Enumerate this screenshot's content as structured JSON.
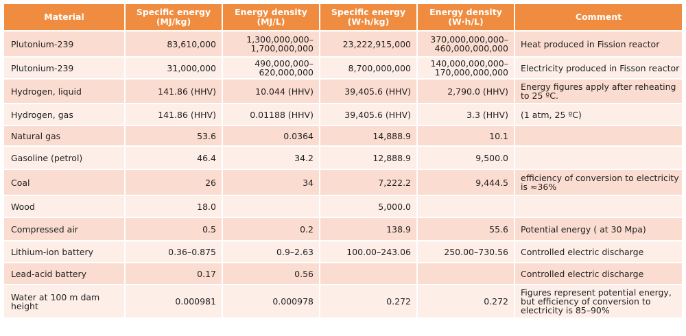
{
  "table": {
    "headers": [
      [
        "Material"
      ],
      [
        "Specific energy",
        "(MJ/kg)"
      ],
      [
        "Energy density",
        "(MJ/L)"
      ],
      [
        "Specific energy",
        "(W·h/kg)"
      ],
      [
        "Energy density",
        "(W·h/L)"
      ],
      [
        "Comment"
      ]
    ],
    "rows": [
      {
        "material": [
          "Plutonium-239"
        ],
        "se_mj": [
          "83,610,000"
        ],
        "ed_mj": [
          "1,300,000,000–",
          "1,700,000,000"
        ],
        "se_wh": [
          "23,222,915,000"
        ],
        "ed_wh": [
          "370,000,000,000–",
          "460,000,000,000"
        ],
        "comment": [
          "Heat produced in Fission reactor"
        ]
      },
      {
        "material": [
          "Plutonium-239"
        ],
        "se_mj": [
          "31,000,000"
        ],
        "ed_mj": [
          "490,000,000–",
          "620,000,000"
        ],
        "se_wh": [
          "8,700,000,000"
        ],
        "ed_wh": [
          "140,000,000,000–",
          "170,000,000,000"
        ],
        "comment": [
          "Electricity produced in Fisson reactor"
        ]
      },
      {
        "material": [
          "Hydrogen, liquid"
        ],
        "se_mj": [
          "141.86 (HHV)"
        ],
        "ed_mj": [
          "10.044 (HHV)"
        ],
        "se_wh": [
          "39,405.6 (HHV)"
        ],
        "ed_wh": [
          "2,790.0 (HHV)"
        ],
        "comment": [
          "Energy figures apply after reheating",
          "to 25 ºC."
        ]
      },
      {
        "material": [
          "Hydrogen, gas"
        ],
        "se_mj": [
          "141.86 (HHV)"
        ],
        "ed_mj": [
          "0.01188 (HHV)"
        ],
        "se_wh": [
          "39,405.6 (HHV)"
        ],
        "ed_wh": [
          "3.3 (HHV)"
        ],
        "comment": [
          "(1 atm, 25 ºC)"
        ]
      },
      {
        "material": [
          "Natural gas"
        ],
        "se_mj": [
          "53.6"
        ],
        "ed_mj": [
          "0.0364"
        ],
        "se_wh": [
          "14,888.9"
        ],
        "ed_wh": [
          "10.1"
        ],
        "comment": [
          ""
        ]
      },
      {
        "material": [
          "Gasoline (petrol)"
        ],
        "se_mj": [
          "46.4"
        ],
        "ed_mj": [
          "34.2"
        ],
        "se_wh": [
          "12,888.9"
        ],
        "ed_wh": [
          "9,500.0"
        ],
        "comment": [
          ""
        ]
      },
      {
        "material": [
          "Coal"
        ],
        "se_mj": [
          "26"
        ],
        "ed_mj": [
          "34"
        ],
        "se_wh": [
          "7,222.2"
        ],
        "ed_wh": [
          "9,444.5"
        ],
        "comment": [
          "efficiency of conversion to electricity",
          "is ≈36%"
        ]
      },
      {
        "material": [
          "Wood"
        ],
        "se_mj": [
          "18.0"
        ],
        "ed_mj": [
          ""
        ],
        "se_wh": [
          "5,000.0"
        ],
        "ed_wh": [
          ""
        ],
        "comment": [
          ""
        ]
      },
      {
        "material": [
          "Compressed air"
        ],
        "se_mj": [
          "0.5"
        ],
        "ed_mj": [
          "0.2"
        ],
        "se_wh": [
          "138.9"
        ],
        "ed_wh": [
          "55.6"
        ],
        "comment": [
          "Potential energy ( at 30 Mpa)"
        ]
      },
      {
        "material": [
          "Lithium-ion battery"
        ],
        "se_mj": [
          "0.36–0.875"
        ],
        "ed_mj": [
          "0.9–2.63"
        ],
        "se_wh": [
          "100.00–243.06"
        ],
        "ed_wh": [
          "250.00–730.56"
        ],
        "comment": [
          "Controlled electric discharge"
        ]
      },
      {
        "material": [
          "Lead-acid battery"
        ],
        "se_mj": [
          "0.17"
        ],
        "ed_mj": [
          "0.56"
        ],
        "se_wh": [
          ""
        ],
        "ed_wh": [
          ""
        ],
        "comment": [
          "Controlled electric discharge"
        ]
      },
      {
        "material": [
          "Water at 100 m dam",
          "height"
        ],
        "se_mj": [
          "0.000981"
        ],
        "ed_mj": [
          "0.000978"
        ],
        "se_wh": [
          "0.272"
        ],
        "ed_wh": [
          "0.272"
        ],
        "comment": [
          "Figures represent potential energy,",
          "but efficiency of conversion to",
          "electricity is 85–90%"
        ]
      }
    ]
  }
}
